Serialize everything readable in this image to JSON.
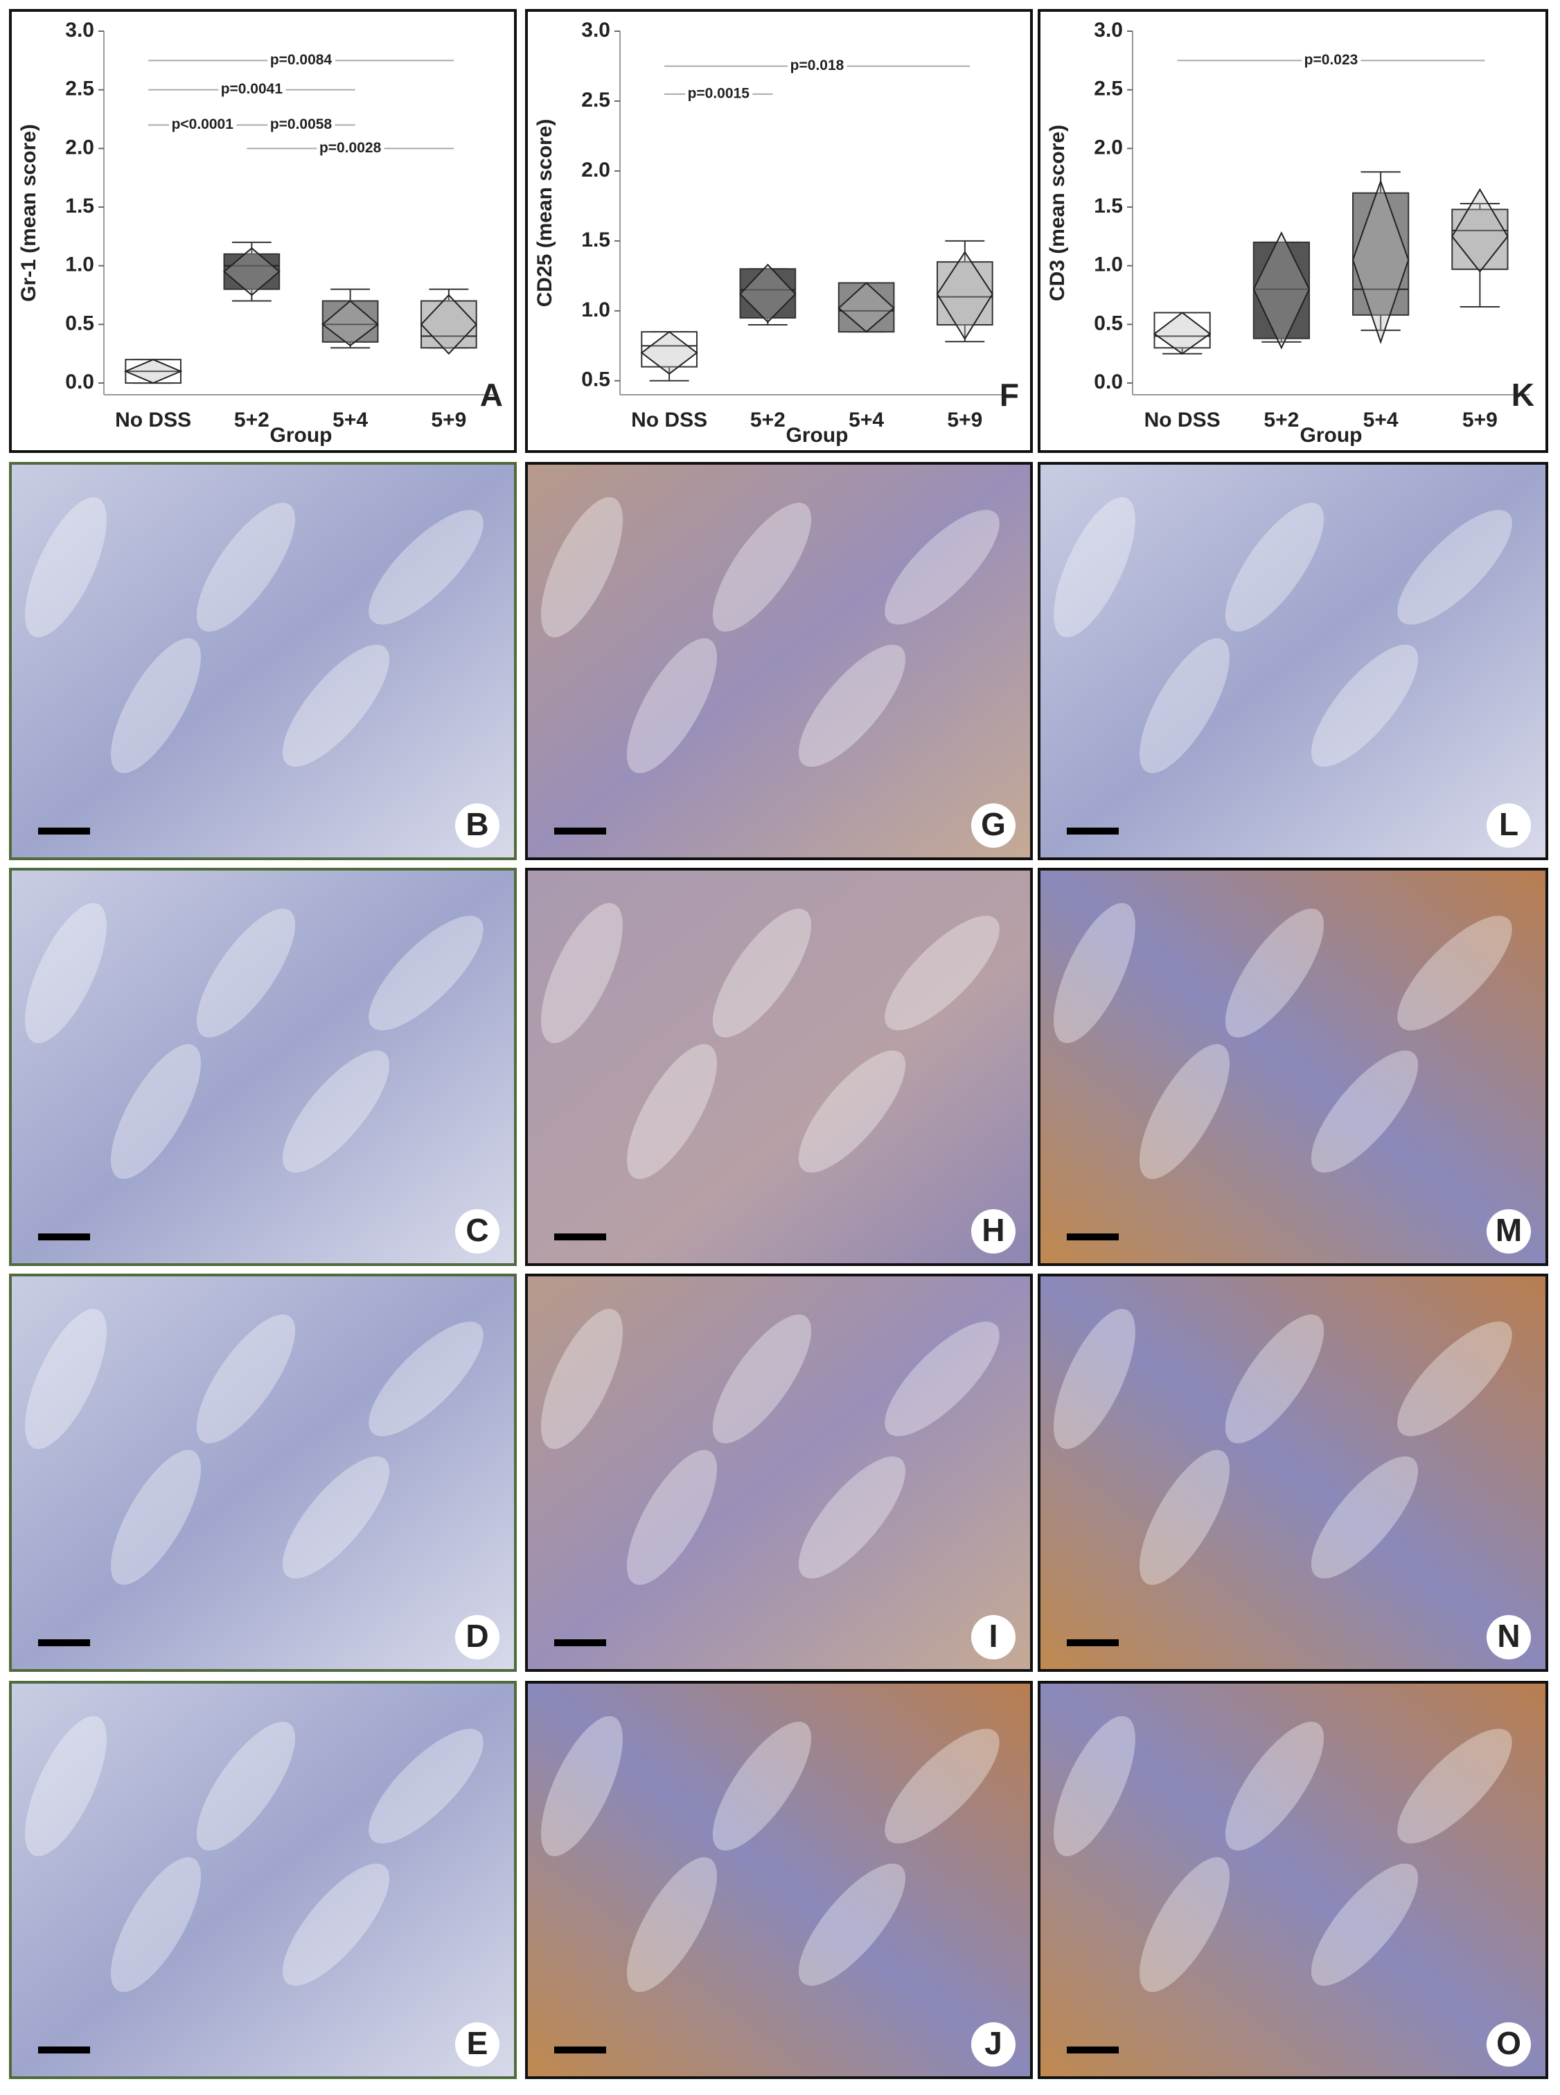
{
  "chart_data": [
    {
      "type": "box",
      "ylabel": "Gr-1 (mean score)",
      "xlabel": "Group",
      "panel": "A",
      "categories": [
        "No DSS",
        "5+2",
        "5+4",
        "5+9"
      ],
      "ylim": [
        -0.1,
        3.0
      ],
      "yticks": [
        {
          "value": 0,
          "label": "0.0"
        },
        0.5,
        {
          "value": 1,
          "label": "1.0"
        },
        1.5,
        {
          "value": 2,
          "label": "2.0"
        },
        2.5,
        {
          "value": 3,
          "label": "3.0"
        }
      ],
      "boxes": [
        {
          "min": 0,
          "q1": 0,
          "median": 0.1,
          "q3": 0.2,
          "max": 0.2,
          "mean": 0.1,
          "mean_low": 0,
          "mean_high": 0.2,
          "color": "#ffffff"
        },
        {
          "min": 0.7,
          "q1": 0.8,
          "median": 1.0,
          "q3": 1.1,
          "max": 1.2,
          "mean": 0.95,
          "mean_low": 0.75,
          "mean_high": 1.15,
          "color": "#555555"
        },
        {
          "min": 0.3,
          "q1": 0.35,
          "median": 0.5,
          "q3": 0.7,
          "max": 0.8,
          "mean": 0.5,
          "mean_low": 0.32,
          "mean_high": 0.7,
          "color": "#8a8a8a"
        },
        {
          "min": 0.3,
          "q1": 0.3,
          "median": 0.4,
          "q3": 0.7,
          "max": 0.8,
          "mean": 0.5,
          "mean_low": 0.25,
          "mean_high": 0.75,
          "color": "#c4c4c4"
        }
      ],
      "annotations": [
        "p=0.0084",
        "p=0.0041",
        "p<0.0001",
        "p=0.0058",
        "p=0.0028"
      ]
    },
    {
      "type": "box",
      "ylabel": "CD25 (mean score)",
      "xlabel": "Group",
      "panel": "F",
      "categories": [
        "No DSS",
        "5+2",
        "5+4",
        "5+9"
      ],
      "ylim": [
        0.4,
        3.0
      ],
      "yticks": [
        0.5,
        {
          "value": 1,
          "label": "1.0"
        },
        1.5,
        {
          "value": 2,
          "label": "2.0"
        },
        2.5,
        {
          "value": 3,
          "label": "3.0"
        }
      ],
      "boxes": [
        {
          "min": 0.5,
          "q1": 0.6,
          "median": 0.75,
          "q3": 0.85,
          "max": 0.85,
          "mean": 0.7,
          "mean_low": 0.55,
          "mean_high": 0.85,
          "color": "#ffffff"
        },
        {
          "min": 0.9,
          "q1": 0.95,
          "median": 1.15,
          "q3": 1.3,
          "max": 1.3,
          "mean": 1.12,
          "mean_low": 0.92,
          "mean_high": 1.33,
          "color": "#555555"
        },
        {
          "min": 0.85,
          "q1": 0.85,
          "median": 1.0,
          "q3": 1.2,
          "max": 1.2,
          "mean": 1.02,
          "mean_low": 0.85,
          "mean_high": 1.2,
          "color": "#8a8a8a"
        },
        {
          "min": 0.78,
          "q1": 0.9,
          "median": 1.1,
          "q3": 1.35,
          "max": 1.5,
          "mean": 1.12,
          "mean_low": 0.8,
          "mean_high": 1.42,
          "color": "#c4c4c4"
        }
      ],
      "annotations": [
        "p=0.018",
        "p=0.0015"
      ]
    },
    {
      "type": "box",
      "ylabel": "CD3 (mean score)",
      "xlabel": "Group",
      "panel": "K",
      "categories": [
        "No DSS",
        "5+2",
        "5+4",
        "5+9"
      ],
      "ylim": [
        -0.1,
        3.0
      ],
      "yticks": [
        {
          "value": 0,
          "label": "0.0"
        },
        0.5,
        {
          "value": 1,
          "label": "1.0"
        },
        1.5,
        {
          "value": 2,
          "label": "2.0"
        },
        2.5,
        {
          "value": 3,
          "label": "3.0"
        }
      ],
      "boxes": [
        {
          "min": 0.25,
          "q1": 0.3,
          "median": 0.4,
          "q3": 0.6,
          "max": 0.6,
          "mean": 0.42,
          "mean_low": 0.25,
          "mean_high": 0.6,
          "color": "#ffffff"
        },
        {
          "min": 0.35,
          "q1": 0.38,
          "median": 0.8,
          "q3": 1.2,
          "max": 1.2,
          "mean": 0.8,
          "mean_low": 0.3,
          "mean_high": 1.28,
          "color": "#555555"
        },
        {
          "min": 0.45,
          "q1": 0.58,
          "median": 0.8,
          "q3": 1.62,
          "max": 1.8,
          "mean": 1.05,
          "mean_low": 0.35,
          "mean_high": 1.72,
          "color": "#8a8a8a"
        },
        {
          "min": 0.65,
          "q1": 0.97,
          "median": 1.3,
          "q3": 1.48,
          "max": 1.53,
          "mean": 1.25,
          "mean_low": 0.95,
          "mean_high": 1.65,
          "color": "#c4c4c4"
        }
      ],
      "annotations": [
        "p=0.023"
      ]
    }
  ],
  "panels": [
    [
      "B",
      "C",
      "D",
      "E"
    ],
    [
      "G",
      "H",
      "I",
      "J"
    ],
    [
      "L",
      "M",
      "N",
      "O"
    ]
  ]
}
